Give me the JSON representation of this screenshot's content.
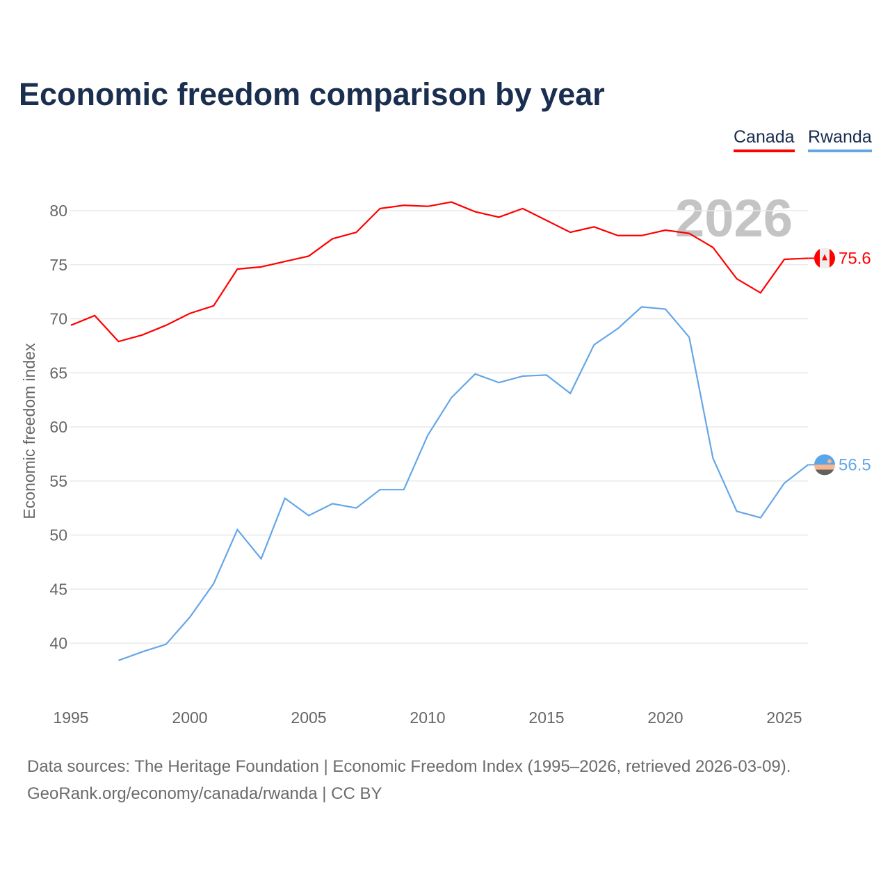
{
  "title": "Economic freedom comparison by year",
  "footer": {
    "line1": "Data sources: The Heritage Foundation | Economic Freedom Index (1995–2026, retrieved 2026-03-09).",
    "line2": "GeoRank.org/economy/canada/rwanda | CC BY"
  },
  "chart_data": {
    "type": "line",
    "title": "Economic freedom comparison by year",
    "xlabel": "",
    "ylabel": "Economic freedom index",
    "watermark_year": "2026",
    "xlim": [
      1995,
      2026
    ],
    "ylim": [
      35,
      85
    ],
    "x_ticks": [
      "1995",
      "2000",
      "2005",
      "2010",
      "2015",
      "2020",
      "2025"
    ],
    "y_ticks": [
      "40",
      "45",
      "50",
      "55",
      "60",
      "65",
      "70",
      "75",
      "80"
    ],
    "grid": true,
    "legend_position": "top-right",
    "series": [
      {
        "name": "Canada",
        "color": "#ff0000",
        "end_label": "75.6",
        "flag": "canada-flag",
        "x": [
          1995,
          1996,
          1997,
          1998,
          1999,
          2000,
          2001,
          2002,
          2003,
          2004,
          2005,
          2006,
          2007,
          2008,
          2009,
          2010,
          2011,
          2012,
          2013,
          2014,
          2015,
          2016,
          2017,
          2018,
          2019,
          2020,
          2021,
          2022,
          2023,
          2024,
          2025,
          2026
        ],
        "values": [
          69.4,
          70.3,
          67.9,
          68.5,
          69.4,
          70.5,
          71.2,
          74.6,
          74.8,
          75.3,
          75.8,
          77.4,
          78.0,
          80.2,
          80.5,
          80.4,
          80.8,
          79.9,
          79.4,
          80.2,
          79.1,
          78.0,
          78.5,
          77.7,
          77.7,
          78.2,
          77.9,
          76.6,
          73.7,
          72.4,
          75.5,
          75.6
        ]
      },
      {
        "name": "Rwanda",
        "color": "#64a6e8",
        "end_label": "56.5",
        "flag": "rwanda-flag",
        "x": [
          1997,
          1998,
          1999,
          2000,
          2001,
          2002,
          2003,
          2004,
          2005,
          2006,
          2007,
          2008,
          2009,
          2010,
          2011,
          2012,
          2013,
          2014,
          2015,
          2016,
          2017,
          2018,
          2019,
          2020,
          2021,
          2022,
          2023,
          2024,
          2025,
          2026
        ],
        "values": [
          38.4,
          39.2,
          39.9,
          42.4,
          45.5,
          50.5,
          47.8,
          53.4,
          51.8,
          52.9,
          52.5,
          54.2,
          54.2,
          59.2,
          62.7,
          64.9,
          64.1,
          64.7,
          64.8,
          63.1,
          67.6,
          69.1,
          71.1,
          70.9,
          68.3,
          57.1,
          52.2,
          51.6,
          54.8,
          56.5
        ]
      }
    ]
  }
}
